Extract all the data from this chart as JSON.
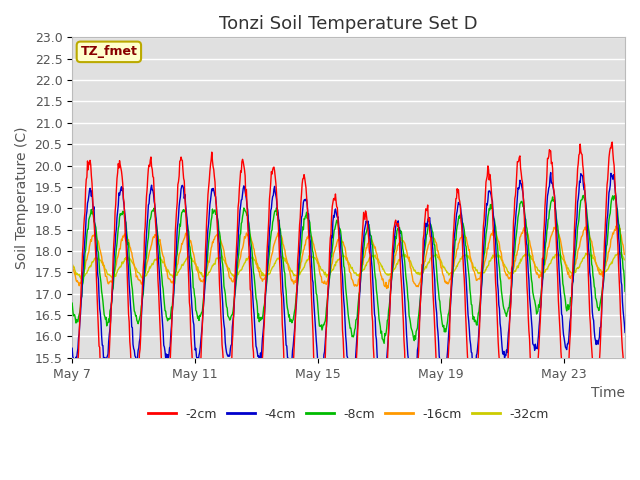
{
  "title": "Tonzi Soil Temperature Set D",
  "xlabel": "Time",
  "ylabel": "Soil Temperature (C)",
  "ylim": [
    15.5,
    23.0
  ],
  "n_days": 18,
  "xtick_labels": [
    "May 7",
    "May 11",
    "May 15",
    "May 19",
    "May 23"
  ],
  "xtick_positions": [
    0,
    4,
    8,
    12,
    16
  ],
  "series_labels": [
    "-2cm",
    "-4cm",
    "-8cm",
    "-16cm",
    "-32cm"
  ],
  "series_colors": [
    "#ff0000",
    "#0000cc",
    "#00bb00",
    "#ff9900",
    "#cccc00"
  ],
  "legend_label": "TZ_fmet",
  "legend_bg": "#ffffcc",
  "legend_border": "#bbaa00",
  "legend_text_color": "#880000",
  "plot_bg": "#e0e0e0",
  "grid_color": "#ffffff",
  "title_fontsize": 13,
  "axis_label_fontsize": 10,
  "tick_fontsize": 9,
  "line_width": 1.0
}
